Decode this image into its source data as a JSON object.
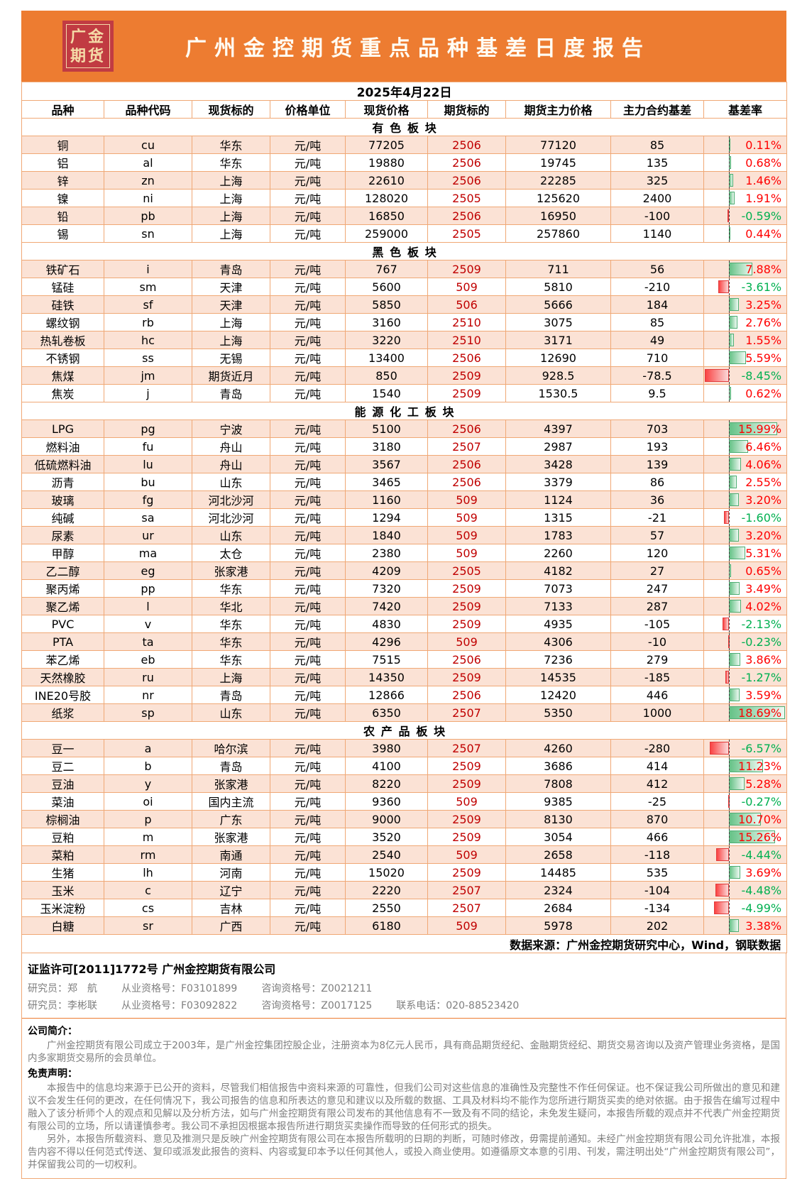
{
  "report": {
    "logo_line1": "广金",
    "logo_line2": "期货",
    "title": "广州金控期货重点品种基差日度报告",
    "date": "2025年4月22日"
  },
  "colors": {
    "banner": "#ED7C31",
    "logo_bg": "#C13B42",
    "logo_text": "#F5DBA8",
    "row_alt": "#FBE2D5",
    "border": "#F0A875",
    "futures_red": "#C00000",
    "up_red": "#FF0000",
    "down_green": "#00B050",
    "bar_green": "#66C287",
    "bar_red": "#FA4343",
    "muted": "#7F7F7F"
  },
  "table": {
    "columns": [
      "品种",
      "品种代码",
      "现货标的",
      "价格单位",
      "现货价格",
      "期货标的",
      "期货主力价格",
      "主力合约基差",
      "基差率"
    ],
    "sections": [
      {
        "name": "有色板块",
        "rows": [
          {
            "name": "铜",
            "code": "cu",
            "spot": "华东",
            "unit": "元/吨",
            "spot_price": "77205",
            "contract": "2506",
            "futures_price": "77120",
            "basis": "85",
            "rate": 0.11,
            "rate_label": "0.11%"
          },
          {
            "name": "铝",
            "code": "al",
            "spot": "华东",
            "unit": "元/吨",
            "spot_price": "19880",
            "contract": "2506",
            "futures_price": "19745",
            "basis": "135",
            "rate": 0.68,
            "rate_label": "0.68%"
          },
          {
            "name": "锌",
            "code": "zn",
            "spot": "上海",
            "unit": "元/吨",
            "spot_price": "22610",
            "contract": "2506",
            "futures_price": "22285",
            "basis": "325",
            "rate": 1.46,
            "rate_label": "1.46%"
          },
          {
            "name": "镍",
            "code": "ni",
            "spot": "上海",
            "unit": "元/吨",
            "spot_price": "128020",
            "contract": "2505",
            "futures_price": "125620",
            "basis": "2400",
            "rate": 1.91,
            "rate_label": "1.91%"
          },
          {
            "name": "铅",
            "code": "pb",
            "spot": "上海",
            "unit": "元/吨",
            "spot_price": "16850",
            "contract": "2506",
            "futures_price": "16950",
            "basis": "-100",
            "rate": -0.59,
            "rate_label": "-0.59%"
          },
          {
            "name": "锡",
            "code": "sn",
            "spot": "上海",
            "unit": "元/吨",
            "spot_price": "259000",
            "contract": "2505",
            "futures_price": "257860",
            "basis": "1140",
            "rate": 0.44,
            "rate_label": "0.44%"
          }
        ]
      },
      {
        "name": "黑色板块",
        "rows": [
          {
            "name": "铁矿石",
            "code": "i",
            "spot": "青岛",
            "unit": "元/吨",
            "spot_price": "767",
            "contract": "2509",
            "futures_price": "711",
            "basis": "56",
            "rate": 7.88,
            "rate_label": "7.88%"
          },
          {
            "name": "锰硅",
            "code": "sm",
            "spot": "天津",
            "unit": "元/吨",
            "spot_price": "5600",
            "contract": "509",
            "futures_price": "5810",
            "basis": "-210",
            "rate": -3.61,
            "rate_label": "-3.61%"
          },
          {
            "name": "硅铁",
            "code": "sf",
            "spot": "天津",
            "unit": "元/吨",
            "spot_price": "5850",
            "contract": "506",
            "futures_price": "5666",
            "basis": "184",
            "rate": 3.25,
            "rate_label": "3.25%"
          },
          {
            "name": "螺纹钢",
            "code": "rb",
            "spot": "上海",
            "unit": "元/吨",
            "spot_price": "3160",
            "contract": "2510",
            "futures_price": "3075",
            "basis": "85",
            "rate": 2.76,
            "rate_label": "2.76%"
          },
          {
            "name": "热轧卷板",
            "code": "hc",
            "spot": "上海",
            "unit": "元/吨",
            "spot_price": "3220",
            "contract": "2510",
            "futures_price": "3171",
            "basis": "49",
            "rate": 1.55,
            "rate_label": "1.55%"
          },
          {
            "name": "不锈钢",
            "code": "ss",
            "spot": "无锡",
            "unit": "元/吨",
            "spot_price": "13400",
            "contract": "2506",
            "futures_price": "12690",
            "basis": "710",
            "rate": 5.59,
            "rate_label": "5.59%"
          },
          {
            "name": "焦煤",
            "code": "jm",
            "spot": "期货近月",
            "unit": "元/吨",
            "spot_price": "850",
            "contract": "2509",
            "futures_price": "928.5",
            "basis": "-78.5",
            "rate": -8.45,
            "rate_label": "-8.45%"
          },
          {
            "name": "焦炭",
            "code": "j",
            "spot": "青岛",
            "unit": "元/吨",
            "spot_price": "1540",
            "contract": "2509",
            "futures_price": "1530.5",
            "basis": "9.5",
            "rate": 0.62,
            "rate_label": "0.62%"
          }
        ]
      },
      {
        "name": "能源化工板块",
        "rows": [
          {
            "name": "LPG",
            "code": "pg",
            "spot": "宁波",
            "unit": "元/吨",
            "spot_price": "5100",
            "contract": "2506",
            "futures_price": "4397",
            "basis": "703",
            "rate": 15.99,
            "rate_label": "15.99%"
          },
          {
            "name": "燃料油",
            "code": "fu",
            "spot": "舟山",
            "unit": "元/吨",
            "spot_price": "3180",
            "contract": "2507",
            "futures_price": "2987",
            "basis": "193",
            "rate": 6.46,
            "rate_label": "6.46%"
          },
          {
            "name": "低硫燃料油",
            "code": "lu",
            "spot": "舟山",
            "unit": "元/吨",
            "spot_price": "3567",
            "contract": "2506",
            "futures_price": "3428",
            "basis": "139",
            "rate": 4.06,
            "rate_label": "4.06%"
          },
          {
            "name": "沥青",
            "code": "bu",
            "spot": "山东",
            "unit": "元/吨",
            "spot_price": "3465",
            "contract": "2506",
            "futures_price": "3379",
            "basis": "86",
            "rate": 2.55,
            "rate_label": "2.55%"
          },
          {
            "name": "玻璃",
            "code": "fg",
            "spot": "河北沙河",
            "unit": "元/吨",
            "spot_price": "1160",
            "contract": "509",
            "futures_price": "1124",
            "basis": "36",
            "rate": 3.2,
            "rate_label": "3.20%"
          },
          {
            "name": "纯碱",
            "code": "sa",
            "spot": "河北沙河",
            "unit": "元/吨",
            "spot_price": "1294",
            "contract": "509",
            "futures_price": "1315",
            "basis": "-21",
            "rate": -1.6,
            "rate_label": "-1.60%"
          },
          {
            "name": "尿素",
            "code": "ur",
            "spot": "山东",
            "unit": "元/吨",
            "spot_price": "1840",
            "contract": "509",
            "futures_price": "1783",
            "basis": "57",
            "rate": 3.2,
            "rate_label": "3.20%"
          },
          {
            "name": "甲醇",
            "code": "ma",
            "spot": "太仓",
            "unit": "元/吨",
            "spot_price": "2380",
            "contract": "509",
            "futures_price": "2260",
            "basis": "120",
            "rate": 5.31,
            "rate_label": "5.31%"
          },
          {
            "name": "乙二醇",
            "code": "eg",
            "spot": "张家港",
            "unit": "元/吨",
            "spot_price": "4209",
            "contract": "2505",
            "futures_price": "4182",
            "basis": "27",
            "rate": 0.65,
            "rate_label": "0.65%"
          },
          {
            "name": "聚丙烯",
            "code": "pp",
            "spot": "华东",
            "unit": "元/吨",
            "spot_price": "7320",
            "contract": "2509",
            "futures_price": "7073",
            "basis": "247",
            "rate": 3.49,
            "rate_label": "3.49%"
          },
          {
            "name": "聚乙烯",
            "code": "l",
            "spot": "华北",
            "unit": "元/吨",
            "spot_price": "7420",
            "contract": "2509",
            "futures_price": "7133",
            "basis": "287",
            "rate": 4.02,
            "rate_label": "4.02%"
          },
          {
            "name": "PVC",
            "code": "v",
            "spot": "华东",
            "unit": "元/吨",
            "spot_price": "4830",
            "contract": "2509",
            "futures_price": "4935",
            "basis": "-105",
            "rate": -2.13,
            "rate_label": "-2.13%"
          },
          {
            "name": "PTA",
            "code": "ta",
            "spot": "华东",
            "unit": "元/吨",
            "spot_price": "4296",
            "contract": "509",
            "futures_price": "4306",
            "basis": "-10",
            "rate": -0.23,
            "rate_label": "-0.23%"
          },
          {
            "name": "苯乙烯",
            "code": "eb",
            "spot": "华东",
            "unit": "元/吨",
            "spot_price": "7515",
            "contract": "2506",
            "futures_price": "7236",
            "basis": "279",
            "rate": 3.86,
            "rate_label": "3.86%"
          },
          {
            "name": "天然橡胶",
            "code": "ru",
            "spot": "上海",
            "unit": "元/吨",
            "spot_price": "14350",
            "contract": "2509",
            "futures_price": "14535",
            "basis": "-185",
            "rate": -1.27,
            "rate_label": "-1.27%"
          },
          {
            "name": "INE20号胶",
            "code": "nr",
            "spot": "青岛",
            "unit": "元/吨",
            "spot_price": "12866",
            "contract": "2506",
            "futures_price": "12420",
            "basis": "446",
            "rate": 3.59,
            "rate_label": "3.59%"
          },
          {
            "name": "纸浆",
            "code": "sp",
            "spot": "山东",
            "unit": "元/吨",
            "spot_price": "6350",
            "contract": "2507",
            "futures_price": "5350",
            "basis": "1000",
            "rate": 18.69,
            "rate_label": "18.69%"
          }
        ]
      },
      {
        "name": "农产品板块",
        "rows": [
          {
            "name": "豆一",
            "code": "a",
            "spot": "哈尔滨",
            "unit": "元/吨",
            "spot_price": "3980",
            "contract": "2507",
            "futures_price": "4260",
            "basis": "-280",
            "rate": -6.57,
            "rate_label": "-6.57%"
          },
          {
            "name": "豆二",
            "code": "b",
            "spot": "青岛",
            "unit": "元/吨",
            "spot_price": "4100",
            "contract": "2509",
            "futures_price": "3686",
            "basis": "414",
            "rate": 11.23,
            "rate_label": "11.23%"
          },
          {
            "name": "豆油",
            "code": "y",
            "spot": "张家港",
            "unit": "元/吨",
            "spot_price": "8220",
            "contract": "2509",
            "futures_price": "7808",
            "basis": "412",
            "rate": 5.28,
            "rate_label": "5.28%"
          },
          {
            "name": "菜油",
            "code": "oi",
            "spot": "国内主流",
            "unit": "元/吨",
            "spot_price": "9360",
            "contract": "509",
            "futures_price": "9385",
            "basis": "-25",
            "rate": -0.27,
            "rate_label": "-0.27%"
          },
          {
            "name": "棕榈油",
            "code": "p",
            "spot": "广东",
            "unit": "元/吨",
            "spot_price": "9000",
            "contract": "2509",
            "futures_price": "8130",
            "basis": "870",
            "rate": 10.7,
            "rate_label": "10.70%"
          },
          {
            "name": "豆粕",
            "code": "m",
            "spot": "张家港",
            "unit": "元/吨",
            "spot_price": "3520",
            "contract": "2509",
            "futures_price": "3054",
            "basis": "466",
            "rate": 15.26,
            "rate_label": "15.26%"
          },
          {
            "name": "菜粕",
            "code": "rm",
            "spot": "南通",
            "unit": "元/吨",
            "spot_price": "2540",
            "contract": "509",
            "futures_price": "2658",
            "basis": "-118",
            "rate": -4.44,
            "rate_label": "-4.44%"
          },
          {
            "name": "生猪",
            "code": "lh",
            "spot": "河南",
            "unit": "元/吨",
            "spot_price": "15020",
            "contract": "2509",
            "futures_price": "14485",
            "basis": "535",
            "rate": 3.69,
            "rate_label": "3.69%"
          },
          {
            "name": "玉米",
            "code": "c",
            "spot": "辽宁",
            "unit": "元/吨",
            "spot_price": "2220",
            "contract": "2507",
            "futures_price": "2324",
            "basis": "-104",
            "rate": -4.48,
            "rate_label": "-4.48%"
          },
          {
            "name": "玉米淀粉",
            "code": "cs",
            "spot": "吉林",
            "unit": "元/吨",
            "spot_price": "2550",
            "contract": "2507",
            "futures_price": "2684",
            "basis": "-134",
            "rate": -4.99,
            "rate_label": "-4.99%"
          },
          {
            "name": "白糖",
            "code": "sr",
            "spot": "广西",
            "unit": "元/吨",
            "spot_price": "6180",
            "contract": "509",
            "futures_price": "5978",
            "basis": "202",
            "rate": 3.38,
            "rate_label": "3.38%"
          }
        ]
      }
    ]
  },
  "footer": {
    "source": "数据来源：广州金控期货研究中心，Wind，钢联数据",
    "license": "证监许可[2011]1772号 广州金控期货有限公司",
    "researcher1": {
      "label": "研究员：郑　航",
      "reg": "从业资格号：F03101899",
      "qual": "咨询资格号：Z0021211"
    },
    "researcher2": {
      "label": "研究员：李彬联",
      "reg": "从业资格号：F03092822",
      "qual": "咨询资格号：Z0017125",
      "phone": "联系电话：020-88523420"
    },
    "intro_title": "公司简介：",
    "intro": "广州金控期货有限公司成立于2003年，是广州金控集团控股企业，注册资本为8亿元人民币，具有商品期货经纪、金融期货经纪、期货交易咨询以及资产管理业务资格，是国内多家期货交易所的会员单位。",
    "disclaimer_title": "免责声明：",
    "disclaimer_p1": "本报告中的信息均来源于已公开的资料，尽管我们相信报告中资料来源的可靠性，但我们公司对这些信息的准确性及完整性不作任何保证。也不保证我公司所做出的意见和建议不会发生任何的更改，在任何情况下，我公司报告的信息和所表达的意见和建议以及所载的数据、工具及材料均不能作为您所进行期货买卖的绝对依据。由于报告在编写过程中融入了该分析师个人的观点和见解以及分析方法，如与广州金控期货有限公司发布的其他信息有不一致及有不同的结论，未免发生疑问，本报告所载的观点并不代表广州金控期货有限公司的立场，所以请谨慎参考。我公司不承担因根据本报告所进行期货买卖操作而导致的任何形式的损失。",
    "disclaimer_p2": "另外，本报告所载资料、意见及推测只是反映广州金控期货有限公司在本报告所载明的日期的判断，可随时修改，毋需提前通知。未经广州金控期货有限公司允许批准，本报告内容不得以任何范式传送、复印或派发此报告的资料、内容或复印本予以任何其他人，或投入商业使用。如遵循原文本意的引用、刊发，需注明出处“广州金控期货有限公司”，并保留我公司的一切权利。"
  }
}
